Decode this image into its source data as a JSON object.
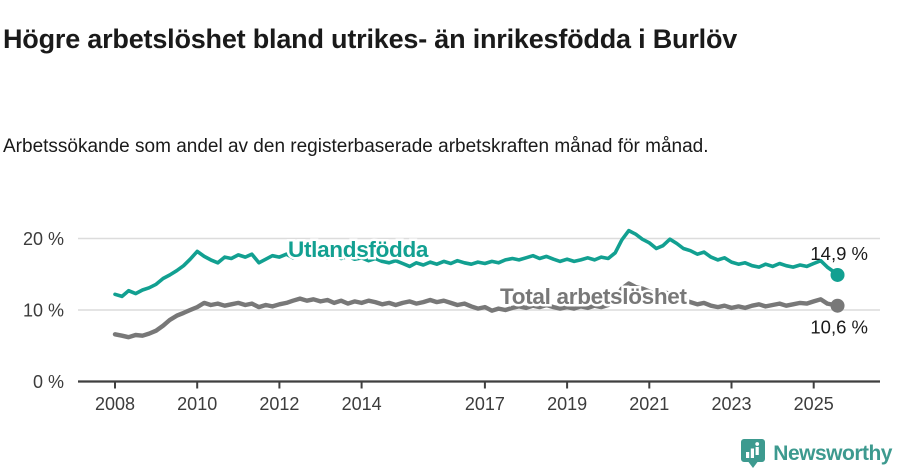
{
  "header": {
    "title": "Högre arbetslöshet bland utrikes- än inrikesfödda i Burlöv",
    "subtitle": "Arbetssökande som andel av den registerbaserade arbetskraften månad för månad."
  },
  "chart_data": {
    "type": "line",
    "unit": "%",
    "grid": "horizontal",
    "ylim": [
      0,
      22
    ],
    "y_ticks": [
      {
        "value": 0,
        "label": "0 %"
      },
      {
        "value": 10,
        "label": "10 %"
      },
      {
        "value": 20,
        "label": "20 %"
      }
    ],
    "x_ticks": [
      {
        "year": 2008,
        "label": "2008"
      },
      {
        "year": 2010,
        "label": "2010"
      },
      {
        "year": 2012,
        "label": "2012"
      },
      {
        "year": 2014,
        "label": "2014"
      },
      {
        "year": 2017,
        "label": "2017"
      },
      {
        "year": 2019,
        "label": "2019"
      },
      {
        "year": 2021,
        "label": "2021"
      },
      {
        "year": 2023,
        "label": "2023"
      },
      {
        "year": 2025,
        "label": "2025"
      }
    ],
    "x_years": [
      2008.0,
      2008.17,
      2008.33,
      2008.5,
      2008.67,
      2008.83,
      2009.0,
      2009.17,
      2009.33,
      2009.5,
      2009.67,
      2009.83,
      2010.0,
      2010.17,
      2010.33,
      2010.5,
      2010.67,
      2010.83,
      2011.0,
      2011.17,
      2011.33,
      2011.5,
      2011.67,
      2011.83,
      2012.0,
      2012.17,
      2012.33,
      2012.5,
      2012.67,
      2012.83,
      2013.0,
      2013.17,
      2013.33,
      2013.5,
      2013.67,
      2013.83,
      2014.0,
      2014.17,
      2014.33,
      2014.5,
      2014.67,
      2014.83,
      2015.0,
      2015.17,
      2015.33,
      2015.5,
      2015.67,
      2015.83,
      2016.0,
      2016.17,
      2016.33,
      2016.5,
      2016.67,
      2016.83,
      2017.0,
      2017.17,
      2017.33,
      2017.5,
      2017.67,
      2017.83,
      2018.0,
      2018.17,
      2018.33,
      2018.5,
      2018.67,
      2018.83,
      2019.0,
      2019.17,
      2019.33,
      2019.5,
      2019.67,
      2019.83,
      2020.0,
      2020.17,
      2020.33,
      2020.5,
      2020.67,
      2020.83,
      2021.0,
      2021.17,
      2021.33,
      2021.5,
      2021.67,
      2021.83,
      2022.0,
      2022.17,
      2022.33,
      2022.5,
      2022.67,
      2022.83,
      2023.0,
      2023.17,
      2023.33,
      2023.5,
      2023.67,
      2023.83,
      2024.0,
      2024.17,
      2024.33,
      2024.5,
      2024.67,
      2024.83,
      2025.0,
      2025.17,
      2025.33,
      2025.5,
      2025.58
    ],
    "series": [
      {
        "name": "Utlandsfödda",
        "color": "#12a091",
        "end_label": "14,9 %",
        "values": [
          12.2,
          11.9,
          12.7,
          12.3,
          12.8,
          13.1,
          13.6,
          14.4,
          14.9,
          15.5,
          16.2,
          17.1,
          18.2,
          17.5,
          17.0,
          16.6,
          17.4,
          17.2,
          17.7,
          17.4,
          17.8,
          16.6,
          17.1,
          17.6,
          17.4,
          17.8,
          17.3,
          17.7,
          18.0,
          17.6,
          17.8,
          17.3,
          17.6,
          17.2,
          17.5,
          17.1,
          17.3,
          16.9,
          17.2,
          16.8,
          16.6,
          16.9,
          16.5,
          16.1,
          16.6,
          16.3,
          16.7,
          16.4,
          16.8,
          16.5,
          16.9,
          16.6,
          16.4,
          16.7,
          16.5,
          16.8,
          16.6,
          17.0,
          17.2,
          17.0,
          17.3,
          17.6,
          17.2,
          17.5,
          17.1,
          16.8,
          17.1,
          16.8,
          17.0,
          17.3,
          17.0,
          17.4,
          17.2,
          18.0,
          19.8,
          21.1,
          20.6,
          19.9,
          19.4,
          18.6,
          19.0,
          19.9,
          19.3,
          18.6,
          18.3,
          17.8,
          18.1,
          17.4,
          17.0,
          17.3,
          16.7,
          16.4,
          16.6,
          16.2,
          16.0,
          16.4,
          16.1,
          16.5,
          16.2,
          16.0,
          16.3,
          16.1,
          16.5,
          16.9,
          16.0,
          15.3,
          14.9
        ]
      },
      {
        "name": "Total arbetslöshet",
        "color": "#787878",
        "end_label": "10,6 %",
        "values": [
          6.6,
          6.4,
          6.2,
          6.5,
          6.4,
          6.7,
          7.1,
          7.8,
          8.6,
          9.2,
          9.6,
          10.0,
          10.4,
          11.0,
          10.7,
          10.9,
          10.6,
          10.8,
          11.0,
          10.7,
          10.9,
          10.4,
          10.7,
          10.5,
          10.8,
          11.0,
          11.3,
          11.6,
          11.3,
          11.5,
          11.2,
          11.4,
          11.0,
          11.3,
          10.9,
          11.2,
          11.0,
          11.3,
          11.1,
          10.8,
          11.0,
          10.7,
          11.0,
          11.2,
          10.9,
          11.1,
          11.4,
          11.1,
          11.3,
          11.0,
          10.7,
          10.9,
          10.5,
          10.2,
          10.4,
          9.9,
          10.2,
          10.0,
          10.3,
          10.5,
          10.3,
          10.6,
          10.4,
          10.7,
          10.4,
          10.2,
          10.4,
          10.2,
          10.5,
          10.3,
          10.6,
          10.4,
          10.7,
          11.6,
          13.0,
          13.7,
          13.2,
          13.0,
          12.6,
          12.2,
          12.5,
          12.3,
          11.8,
          11.4,
          11.1,
          10.8,
          11.0,
          10.6,
          10.4,
          10.6,
          10.3,
          10.5,
          10.3,
          10.6,
          10.8,
          10.5,
          10.7,
          10.9,
          10.6,
          10.8,
          11.0,
          10.9,
          11.2,
          11.5,
          10.9,
          10.7,
          10.6
        ]
      }
    ],
    "colors": {
      "grid": "#dcdcdc",
      "axis": "#3f3f3f",
      "tick_label": "#3c3c3c",
      "value_label": "#1a1a1a"
    }
  },
  "footer": {
    "brand": "Newsworthy",
    "brand_color": "#3d9a8f"
  }
}
